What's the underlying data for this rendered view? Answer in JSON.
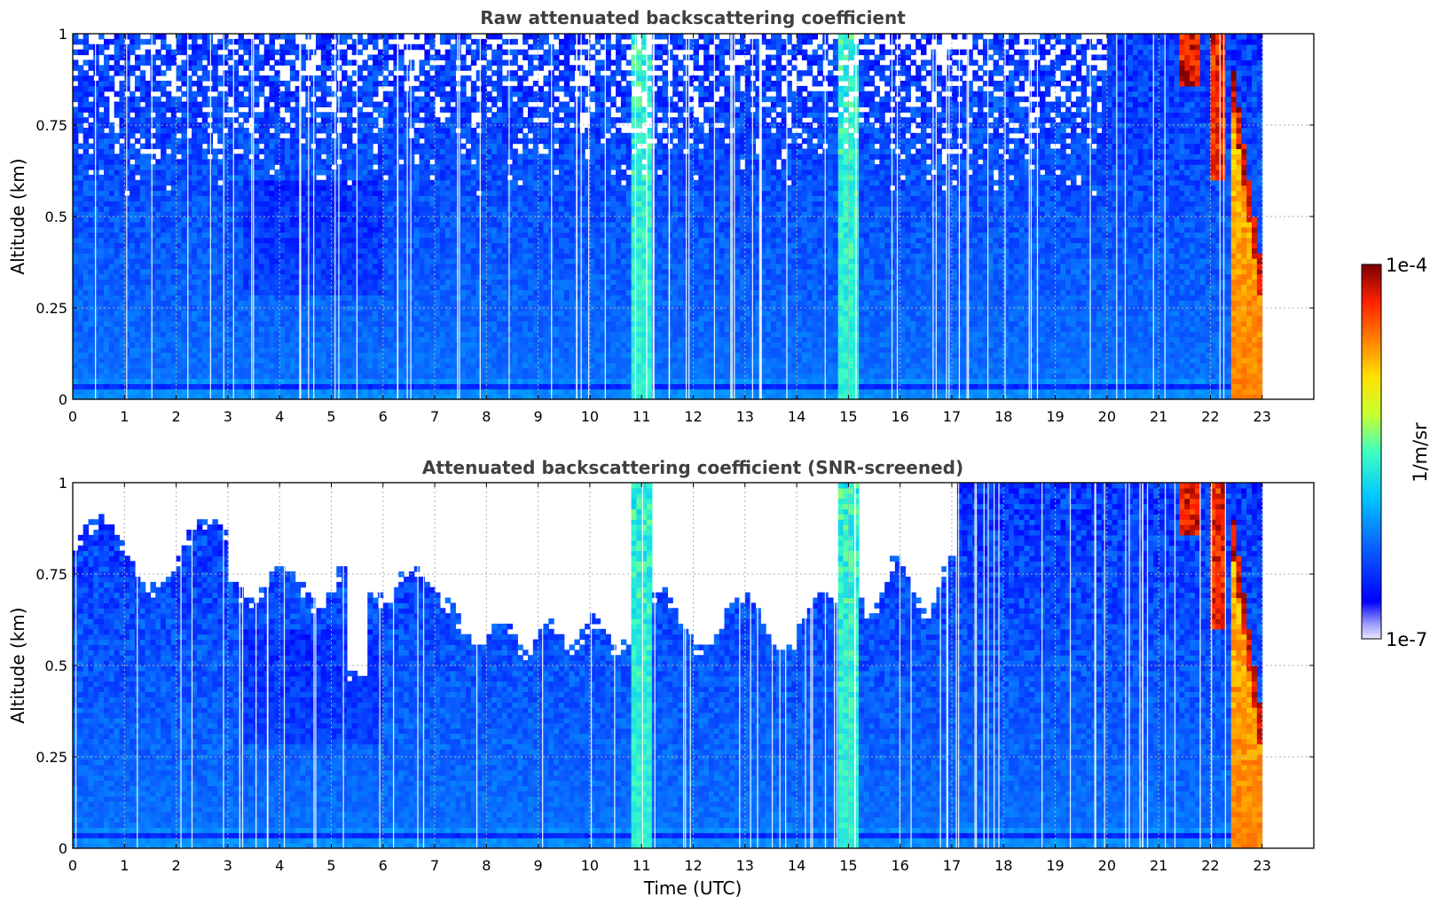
{
  "chart_data": [
    {
      "type": "heatmap",
      "title": "Raw attenuated backscattering coefficient",
      "ylabel": "Altitude (km)",
      "xlabel": "",
      "xlim": [
        0,
        24
      ],
      "ylim": [
        0,
        1
      ],
      "x_ticks": [
        "0",
        "1",
        "2",
        "3",
        "4",
        "5",
        "6",
        "7",
        "8",
        "9",
        "10",
        "11",
        "12",
        "13",
        "14",
        "15",
        "16",
        "17",
        "18",
        "19",
        "20",
        "21",
        "22",
        "23"
      ],
      "y_ticks": [
        "0",
        "0.25",
        "0.5",
        "0.75",
        "1"
      ],
      "grid": true,
      "data_end_hour": 23,
      "screened": false
    },
    {
      "type": "heatmap",
      "title": "Attenuated backscattering coefficient (SNR-screened)",
      "ylabel": "Altitude (km)",
      "xlabel": "Time (UTC)",
      "xlim": [
        0,
        24
      ],
      "ylim": [
        0,
        1
      ],
      "x_ticks": [
        "0",
        "1",
        "2",
        "3",
        "4",
        "5",
        "6",
        "7",
        "8",
        "9",
        "10",
        "11",
        "12",
        "13",
        "14",
        "15",
        "16",
        "17",
        "18",
        "19",
        "20",
        "21",
        "22",
        "23"
      ],
      "y_ticks": [
        "0",
        "0.25",
        "0.5",
        "0.75",
        "1"
      ],
      "grid": true,
      "data_end_hour": 23,
      "screened": true
    }
  ],
  "colorbar": {
    "label": "1/m/sr",
    "max_label": "1e-4",
    "min_label": "1e-7",
    "range": [
      1e-07,
      0.0001
    ],
    "scale": "log",
    "colormap": "jet"
  }
}
